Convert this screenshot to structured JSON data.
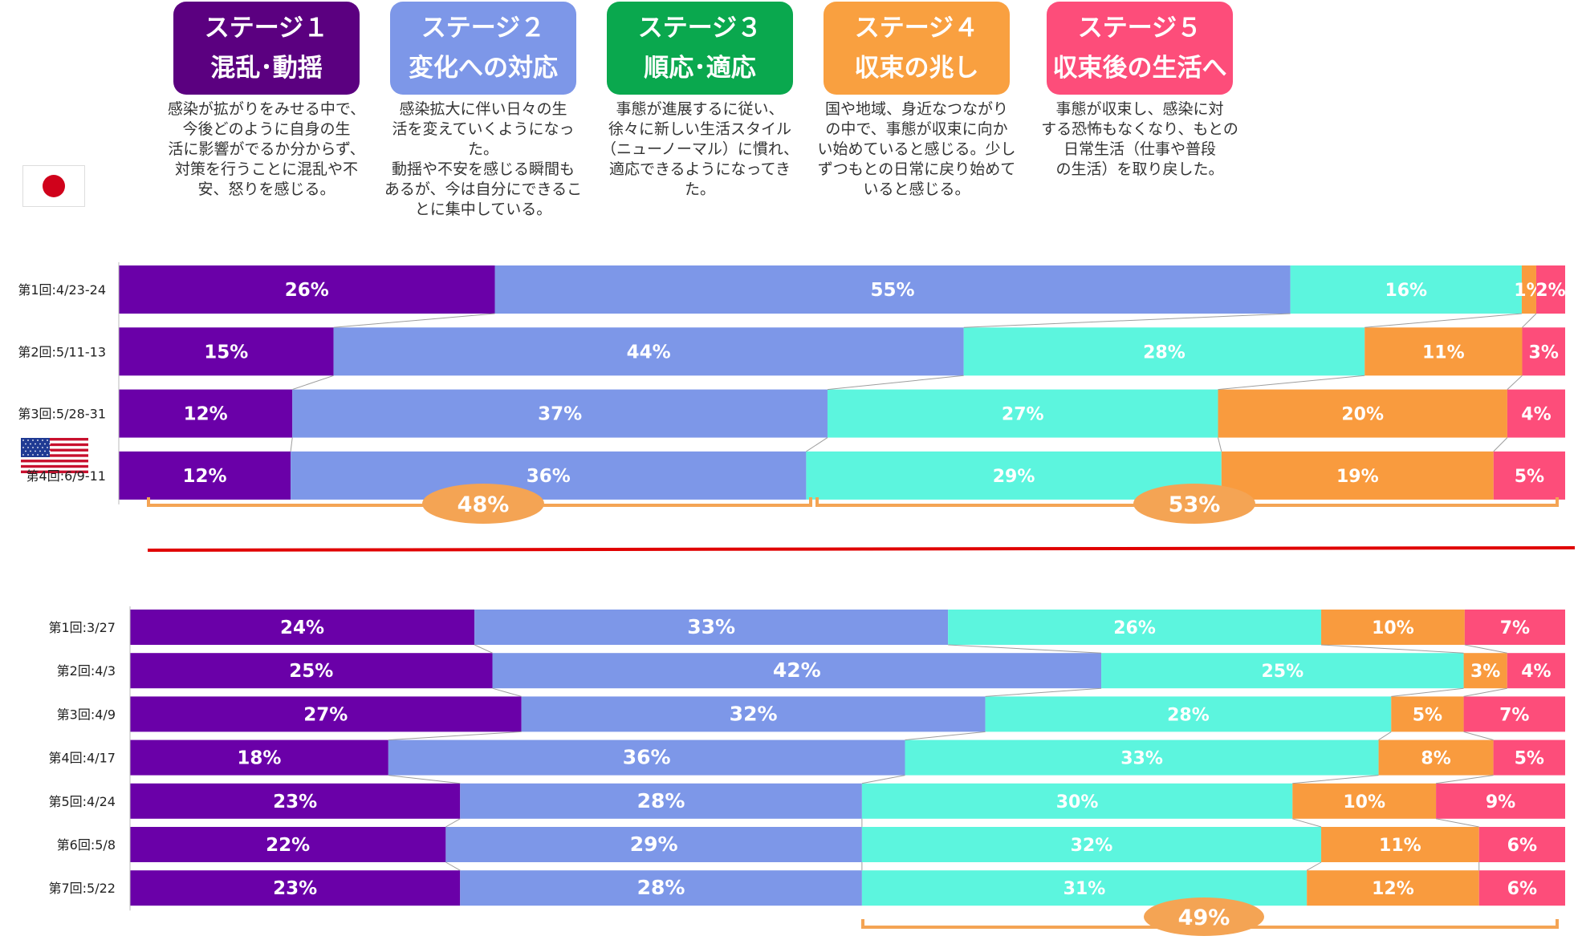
{
  "stages": [
    {
      "title": "ステージ１",
      "subtitle": "混乱･動揺",
      "color": "#5b0080",
      "desc": [
        "感染が拡がりをみせる中で、",
        "今後どのように自身の生",
        "活に影響がでるか分からず、",
        "対策を行うことに混乱や不",
        "安、怒りを感じる。"
      ]
    },
    {
      "title": "ステージ２",
      "subtitle": "変化への対応",
      "color": "#7d97e8",
      "desc": [
        "感染拡大に伴い日々の生",
        "活を変えていくようになった。",
        "動揺や不安を感じる瞬間も",
        "あるが、今は自分にできるこ",
        "とに集中している。"
      ]
    },
    {
      "title": "ステージ３",
      "subtitle": "順応･適応",
      "color": "#0aa84e",
      "desc": [
        "事態が進展するに従い、",
        "徐々に新しい生活スタイル",
        "（ニューノーマル）に慣れ、",
        "適応できるようになってきた。"
      ]
    },
    {
      "title": "ステージ４",
      "subtitle": "収束の兆し",
      "color": "#f9a040",
      "desc": [
        "国や地域、身近なつながり",
        "の中で、事態が収束に向か",
        "い始めていると感じる。少し",
        "ずつもとの日常に戻り始めて",
        "いると感じる。"
      ]
    },
    {
      "title": "ステージ５",
      "subtitle": "収束後の生活へ",
      "color": "#fd4d7a",
      "desc": [
        "事態が収束し、感染に対",
        "する恐怖もなくなり、もとの",
        "日常生活（仕事や普段",
        "の生活）を取り戻した。"
      ]
    }
  ],
  "chart_data": [
    {
      "type": "bar",
      "orientation": "horizontal-stacked-100",
      "region": "Japan",
      "categories": [
        "第1回:4/23-24",
        "第2回:5/11-13",
        "第3回:5/28-31",
        "第4回:6/9-11"
      ],
      "series": [
        {
          "name": "ステージ１",
          "values": [
            26,
            15,
            12,
            12
          ]
        },
        {
          "name": "ステージ２",
          "values": [
            55,
            44,
            37,
            36
          ]
        },
        {
          "name": "ステージ３",
          "values": [
            16,
            28,
            27,
            29
          ]
        },
        {
          "name": "ステージ４",
          "values": [
            1,
            11,
            20,
            19
          ]
        },
        {
          "name": "ステージ５",
          "values": [
            2,
            3,
            4,
            5
          ]
        }
      ],
      "annotations": [
        "48%",
        "53%"
      ]
    },
    {
      "type": "bar",
      "orientation": "horizontal-stacked-100",
      "region": "USA",
      "categories": [
        "第1回:3/27",
        "第2回:4/3",
        "第3回:4/9",
        "第4回:4/17",
        "第5回:4/24",
        "第6回:5/8",
        "第7回:5/22"
      ],
      "series": [
        {
          "name": "ステージ１",
          "values": [
            24,
            25,
            27,
            18,
            23,
            22,
            23
          ]
        },
        {
          "name": "ステージ２",
          "values": [
            33,
            42,
            32,
            36,
            28,
            29,
            28
          ]
        },
        {
          "name": "ステージ３",
          "values": [
            26,
            25,
            28,
            33,
            30,
            32,
            31
          ]
        },
        {
          "name": "ステージ４",
          "values": [
            10,
            3,
            5,
            8,
            10,
            11,
            12
          ]
        },
        {
          "name": "ステージ５",
          "values": [
            7,
            4,
            7,
            5,
            9,
            6,
            6
          ]
        }
      ],
      "annotations": [
        "49%"
      ]
    }
  ],
  "colors": {
    "s1": "#6a00a8",
    "s2": "#7d97e8",
    "s3": "#5cf5de",
    "s4": "#f99b3e",
    "s5": "#fd4d7a",
    "bracket": "#f4a454",
    "divider": "#e00000"
  }
}
